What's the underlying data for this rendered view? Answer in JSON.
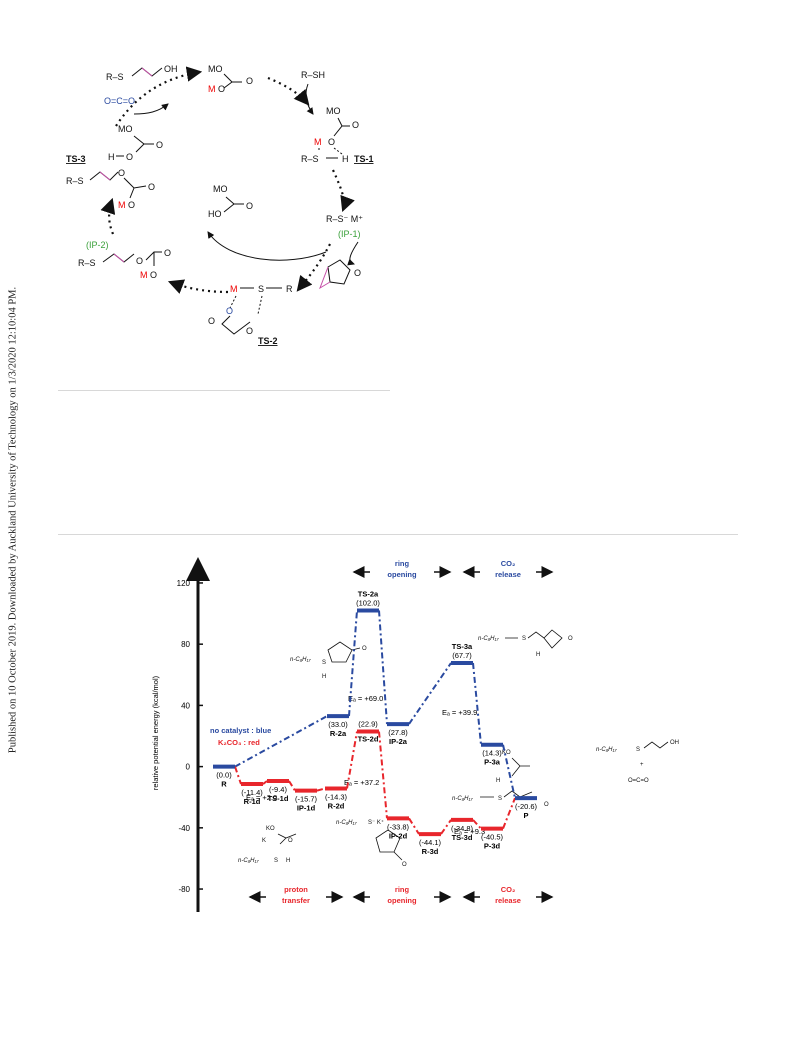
{
  "watermark": "Published on 10 October 2019. Downloaded by Auckland University of Technology on 1/3/2020 12:10:04 PM.",
  "scheme": {
    "mo": "MO",
    "o": "O",
    "oh": "OH",
    "ho": "HO",
    "rsh": "R–SH",
    "rs": "R–S",
    "r": "R",
    "s": "S",
    "h": "H",
    "m": "M",
    "k": "K",
    "co2": "O=C=O",
    "ts1": "TS-1",
    "ts2": "TS-2",
    "ts3": "TS-3",
    "ip1": "(IP-1)",
    "ip2": "(IP-2)",
    "ip1_species": "R–S⁻ M⁺"
  },
  "profile": {
    "ylabel": "relative potential energy (kcal/mol)",
    "ticks": [
      "120",
      "80",
      "40",
      "0",
      "-40",
      "-80"
    ],
    "legend_blue": "no catalyst : blue",
    "legend_red": "K₂CO₃ : red",
    "top_ring_1": "ring",
    "top_ring_2": "opening",
    "top_co2_1": "CO₂",
    "top_co2_2": "release",
    "bot_proton_1": "proton",
    "bot_proton_2": "transfer",
    "bot_ring_1": "ring",
    "bot_ring_2": "opening",
    "bot_co2_1": "CO₂",
    "bot_co2_2": "release",
    "ea_blue_1": "Eₐ = +69.0",
    "ea_blue_2": "Eₐ = +39.9",
    "ea_red_1": "Eₐ = +2.0",
    "ea_red_2": "Eₐ = +37.2",
    "ea_red_3": "Eₐ = +9.3",
    "struct_c8h17": "n-C₈H₁₇",
    "struct_s": "S",
    "struct_sk": "S⁻ K⁺",
    "struct_h": "H",
    "struct_o": "O",
    "struct_ko": "KO",
    "struct_k": "K",
    "struct_co2": "O=C=O",
    "struct_oh": "OH",
    "plus": "+",
    "levels": [
      {
        "label": "R",
        "value": "(0.0)",
        "color": "#2a4aa0"
      },
      {
        "label": "R-1d",
        "value": "(-11.4)",
        "color": "#e8262c"
      },
      {
        "label": "TS-1d",
        "value": "(-9.4)",
        "color": "#e8262c"
      },
      {
        "label": "IP-1d",
        "value": "(-15.7)",
        "color": "#e8262c"
      },
      {
        "label": "R-2d",
        "value": "(-14.3)",
        "color": "#e8262c"
      },
      {
        "label": "R-2a",
        "value": "(33.0)",
        "color": "#2a4aa0"
      },
      {
        "label": "TS-2a",
        "value": "(102.0)",
        "color": "#2a4aa0"
      },
      {
        "label": "TS-2d",
        "value": "(22.9)",
        "color": "#e8262c"
      },
      {
        "label": "IP-2a",
        "value": "(27.8)",
        "color": "#2a4aa0"
      },
      {
        "label": "IP-2d",
        "value": "(-33.8)",
        "color": "#e8262c"
      },
      {
        "label": "R-3d",
        "value": "(-44.1)",
        "color": "#e8262c"
      },
      {
        "label": "TS-3a",
        "value": "(67.7)",
        "color": "#2a4aa0"
      },
      {
        "label": "TS-3d",
        "value": "(-34.8)",
        "color": "#e8262c"
      },
      {
        "label": "P-3a",
        "value": "(14.3)",
        "color": "#2a4aa0"
      },
      {
        "label": "P-3d",
        "value": "(-40.5)",
        "color": "#e8262c"
      },
      {
        "label": "P",
        "value": "(-20.6)",
        "color": "#2a4aa0"
      }
    ]
  },
  "chart_data": {
    "type": "line",
    "ylabel": "relative potential energy (kcal/mol)",
    "ylim": [
      -95,
      135
    ],
    "yticks": [
      120,
      80,
      40,
      0,
      -40,
      -80
    ],
    "series": [
      {
        "name": "no catalyst : blue",
        "color": "#2a4aa0",
        "points": [
          [
            "R",
            0.0
          ],
          [
            "R-2a",
            33.0
          ],
          [
            "TS-2a",
            102.0
          ],
          [
            "IP-2a",
            27.8
          ],
          [
            "TS-3a",
            67.7
          ],
          [
            "P-3a",
            14.3
          ],
          [
            "P",
            -20.6
          ]
        ]
      },
      {
        "name": "K₂CO₃ : red",
        "color": "#e8262c",
        "points": [
          [
            "R",
            0.0
          ],
          [
            "R-1d",
            -11.4
          ],
          [
            "TS-1d",
            -9.4
          ],
          [
            "IP-1d",
            -15.7
          ],
          [
            "R-2d",
            -14.3
          ],
          [
            "TS-2d",
            22.9
          ],
          [
            "IP-2d",
            -33.8
          ],
          [
            "R-3d",
            -44.1
          ],
          [
            "TS-3d",
            -34.8
          ],
          [
            "P-3d",
            -40.5
          ],
          [
            "P",
            -20.6
          ]
        ]
      }
    ],
    "activation_energies": {
      "blue": [
        "+69.0",
        "+39.9"
      ],
      "red": [
        "+2.0",
        "+37.2",
        "+9.3"
      ]
    }
  }
}
